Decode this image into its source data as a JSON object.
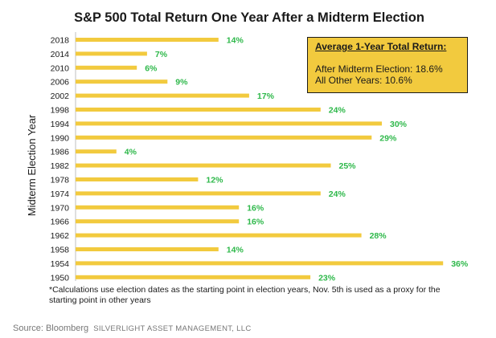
{
  "colors": {
    "bar": "#F2CA3E",
    "data_label": "#2EB84A",
    "callout_bg": "#F2CA3E"
  },
  "callout": {
    "heading": "Average 1-Year Total Return:",
    "line1": "After Midterm Election: 18.6%",
    "line2": "All Other Years: 10.6%"
  },
  "footnote": "*Calculations use election dates as the starting point in election years, Nov. 5th is used as a proxy for the starting point in other years",
  "source": {
    "prefix": "Source: Bloomberg",
    "company": "SILVERLIGHT ASSET MANAGEMENT, LLC"
  },
  "chart_data": {
    "type": "bar",
    "orientation": "horizontal",
    "title": "S&P 500 Total Return One Year After a Midterm Election",
    "ylabel": "Midterm Election Year",
    "xlabel": "",
    "categories": [
      "2018",
      "2014",
      "2010",
      "2006",
      "2002",
      "1998",
      "1994",
      "1990",
      "1986",
      "1982",
      "1978",
      "1974",
      "1970",
      "1966",
      "1962",
      "1958",
      "1954",
      "1950"
    ],
    "values": [
      14,
      7,
      6,
      9,
      17,
      24,
      30,
      29,
      4,
      25,
      12,
      24,
      16,
      16,
      28,
      14,
      36,
      23
    ],
    "value_labels": [
      "14%",
      "7%",
      "6%",
      "9%",
      "17%",
      "24%",
      "30%",
      "29%",
      "4%",
      "25%",
      "12%",
      "24%",
      "16%",
      "16%",
      "28%",
      "14%",
      "36%",
      "23%"
    ],
    "xlim": [
      0,
      36
    ],
    "grid": false,
    "legend": "none"
  }
}
